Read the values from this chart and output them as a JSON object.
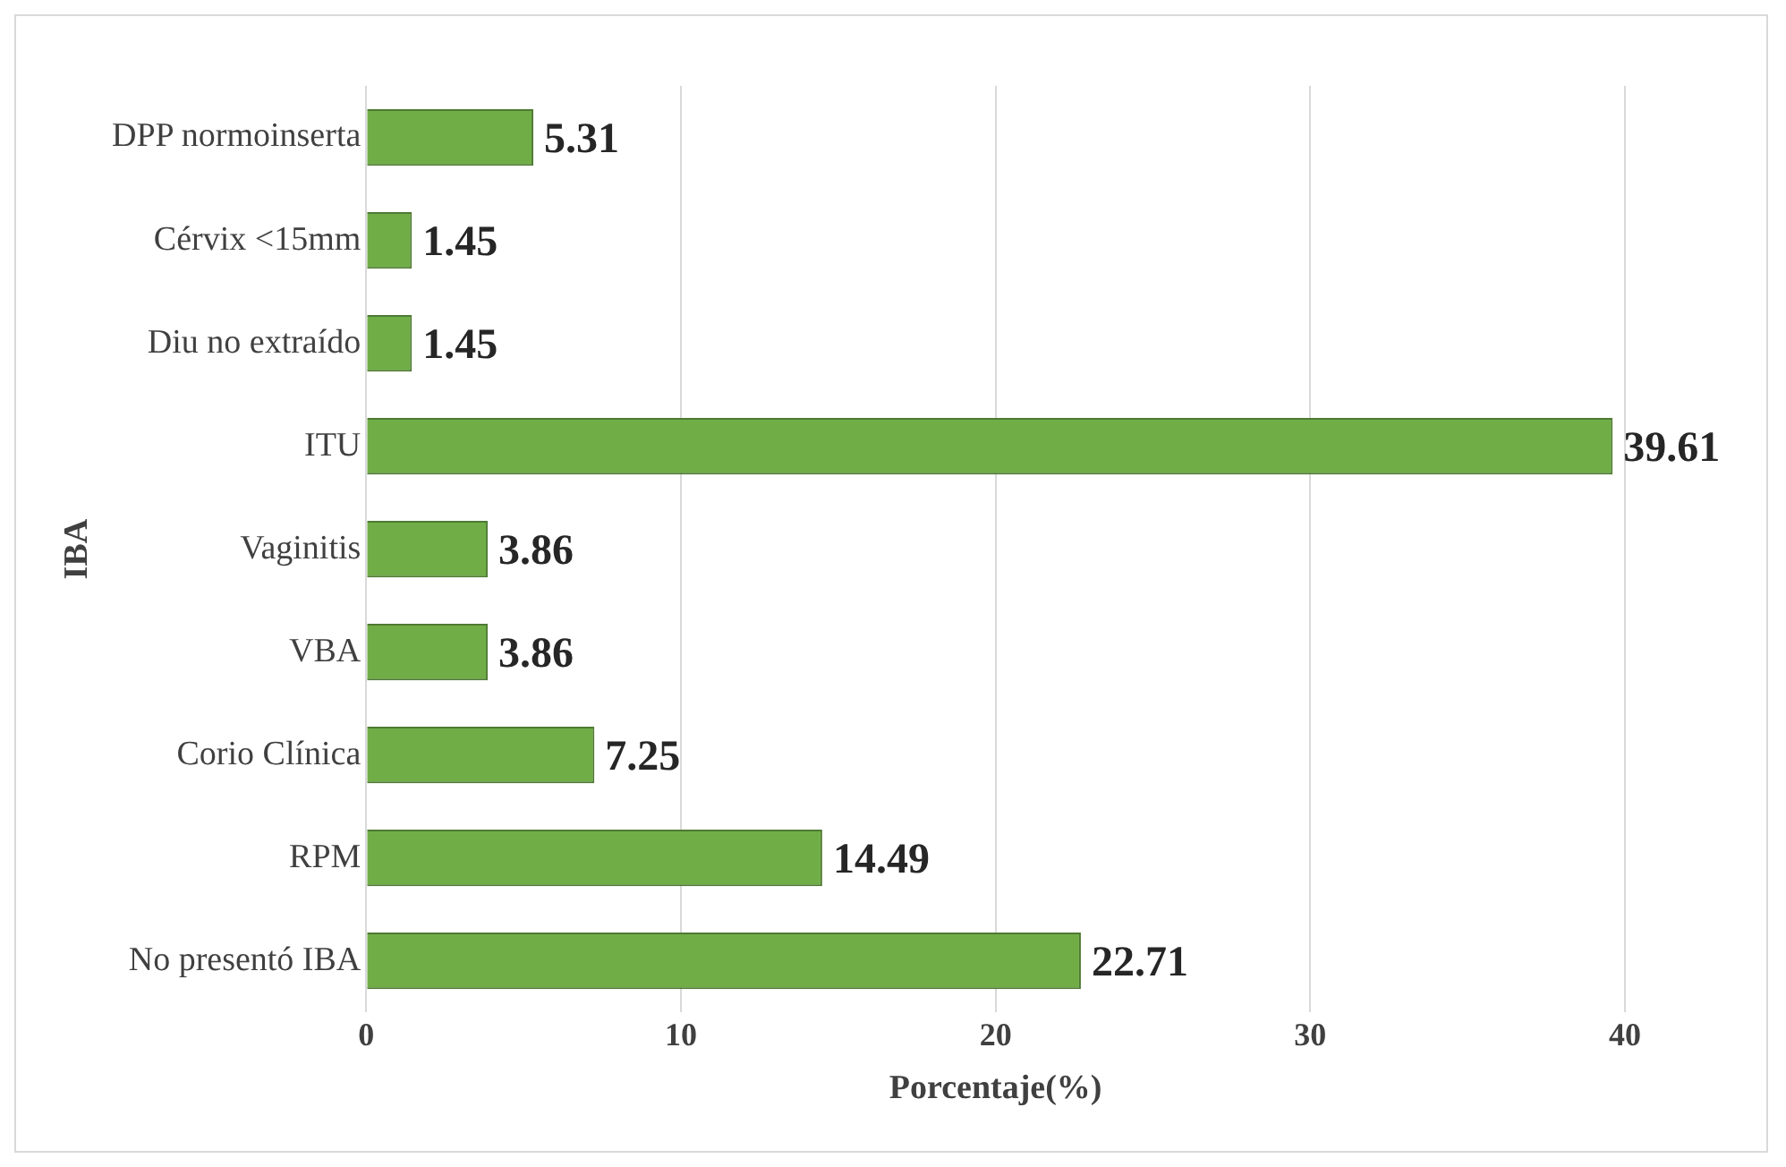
{
  "chart_data": {
    "type": "bar",
    "orientation": "horizontal",
    "ylabel": "IBA",
    "xlabel": "Porcentaje(%)",
    "categories": [
      "DPP normoinserta",
      "Cérvix <15mm",
      "Diu no extraído",
      "ITU",
      "Vaginitis",
      "VBA",
      "Corio Clínica",
      "RPM",
      "No presentó IBA"
    ],
    "values": [
      5.31,
      1.45,
      1.45,
      39.61,
      3.86,
      3.86,
      7.25,
      14.49,
      22.71
    ],
    "color": "#70ad47",
    "xlim": [
      0,
      40
    ],
    "xticks": [
      0,
      10,
      20,
      30,
      40
    ],
    "grid": "x",
    "data_labels": true,
    "legend": false
  }
}
